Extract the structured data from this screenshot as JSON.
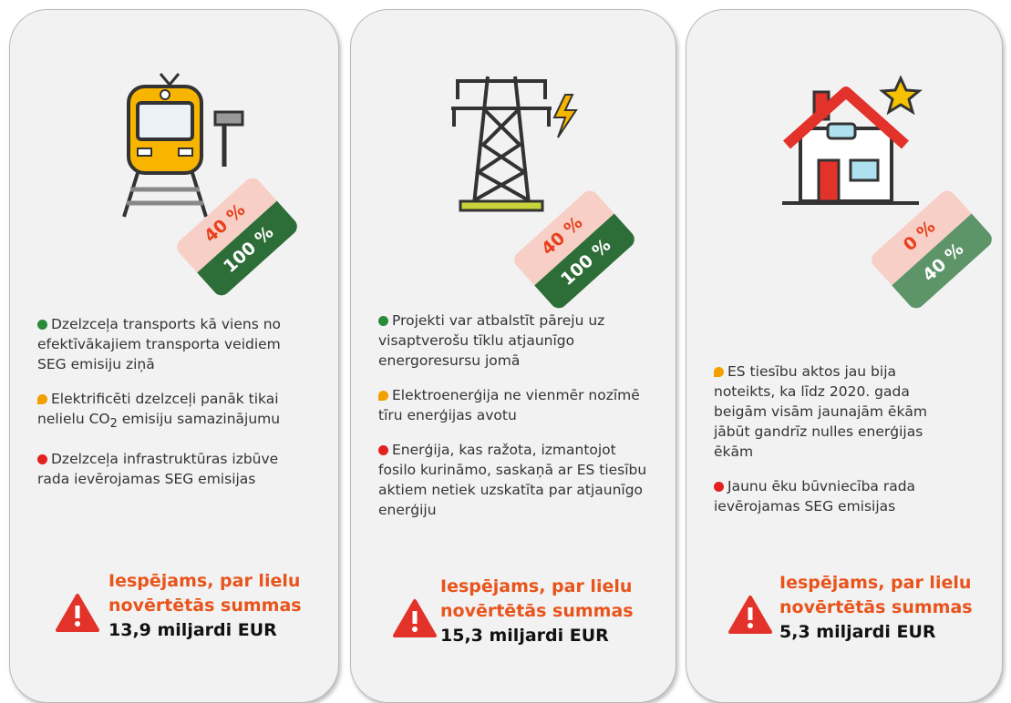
{
  "cards": [
    {
      "tag": {
        "top": "40 %",
        "bottom": "100 %"
      },
      "points": [
        {
          "text": "Dzelzceļa transports kā viens no efektīvākajiem transporta veidiem SEG emisiju ziņā"
        },
        {
          "parts": [
            "Elektrificēti dzelzceļi panāk tikai nelielu CO",
            "2",
            " emisiju samazinājumu"
          ]
        },
        {
          "text": "Dzelzceļa infrastruktūras izbūve rada ievērojamas SEG emisijas"
        }
      ],
      "warning": {
        "line1": "Iespējams, par lielu",
        "line2": "novērtētās summas",
        "amount": "13,9 miljardi EUR"
      }
    },
    {
      "tag": {
        "top": "40 %",
        "bottom": "100 %"
      },
      "points": [
        {
          "text": "Projekti var atbalstīt pāreju uz visaptverošu tīklu atjaunīgo energoresursu jomā"
        },
        {
          "text": "Elektroenerģija ne vienmēr nozīmē tīru enerģijas avotu"
        },
        {
          "text": "Enerģija, kas ražota, izmantojot fosilo kurināmo, saskaņā ar ES tiesību aktiem netiek uzskatīta par atjaunīgo enerģiju"
        }
      ],
      "warning": {
        "line1": "Iespējams, par lielu",
        "line2": "novērtētās summas",
        "amount": "15,3 miljardi EUR"
      }
    },
    {
      "tag": {
        "top": "0 %",
        "bottom": "40 %"
      },
      "points": [
        {
          "text": "ES tiesību aktos jau bija noteikts, ka līdz 2020. gada beigām visām jaunajām ēkām jābūt gandrīz nulles enerģijas ēkām"
        },
        {
          "text": "Jaunu ēku būvniecība rada ievērojamas SEG emisijas"
        }
      ],
      "warning": {
        "line1": "Iespējams, par lielu",
        "line2": "novērtētās summas",
        "amount": "5,3 miljardi EUR"
      }
    }
  ]
}
